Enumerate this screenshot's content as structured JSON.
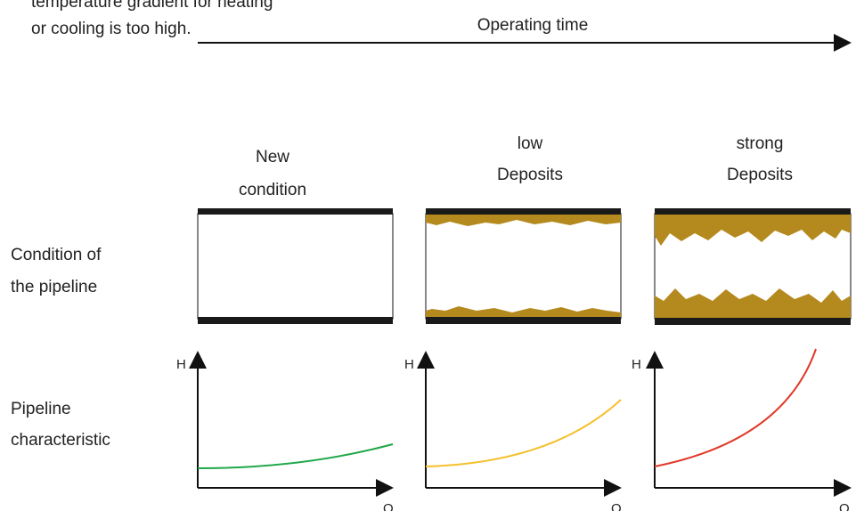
{
  "header": {
    "note": [
      "temperature gradient for heating",
      "or cooling is too high."
    ],
    "axis_label": "Operating time"
  },
  "rows": [
    "Condition of the pipeline",
    "Pipeline characteristic"
  ],
  "row_lines": [
    [
      "Condition of",
      "the pipeline"
    ],
    [
      "Pipeline",
      "characteristic"
    ]
  ],
  "columns": [
    {
      "label": [
        "New",
        "condition"
      ],
      "y_axis": "H",
      "x_axis": "Q"
    },
    {
      "label": [
        "low",
        "Deposits"
      ],
      "y_axis": "H",
      "x_axis": "Q"
    },
    {
      "label": [
        "strong",
        "Deposits"
      ],
      "y_axis": "H",
      "x_axis": "Q"
    }
  ]
}
